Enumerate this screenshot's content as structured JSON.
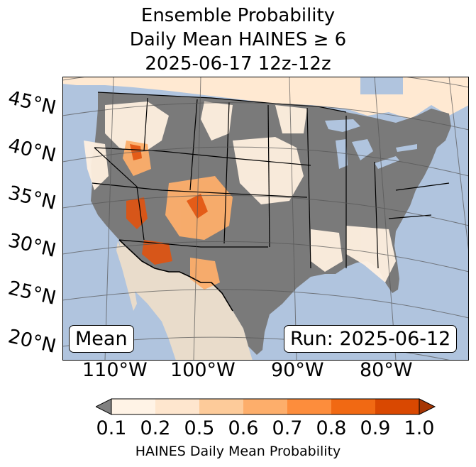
{
  "title": {
    "line1": "Ensemble Probability",
    "line2": "Daily Mean HAINES ≥ 6",
    "line3": "2025-06-17 12z-12z"
  },
  "map": {
    "lat_labels": [
      "45°N",
      "40°N",
      "35°N",
      "30°N",
      "25°N",
      "20°N"
    ],
    "lon_labels": [
      "110°W",
      "100°W",
      "90°W",
      "80°W"
    ],
    "stat_label": "Mean",
    "run_label": "Run: 2025-06-12",
    "colors": {
      "ocean": "#b0c4de",
      "land_below_threshold": "#7a7a7a",
      "no_data_land": "#ffffff",
      "borders": "#000000",
      "graticule": "#555555"
    }
  },
  "colorbar": {
    "label": "HAINES Daily Mean Probability",
    "ticks": [
      "0.1",
      "0.2",
      "0.5",
      "0.6",
      "0.7",
      "0.8",
      "0.9",
      "1.0"
    ],
    "colors": [
      "#fff3e6",
      "#fee6ce",
      "#fdcb9a",
      "#fdae6b",
      "#fd8d3c",
      "#f16913",
      "#d94801",
      "#a63603"
    ],
    "under_color": "#808080",
    "extend": "both"
  }
}
